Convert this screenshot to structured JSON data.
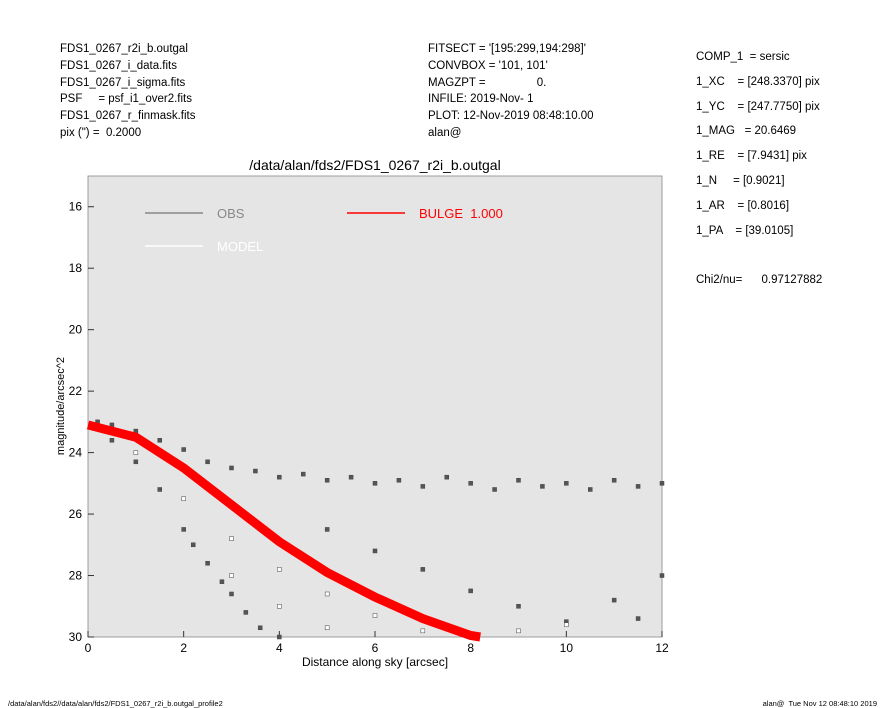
{
  "header": {
    "left": [
      "FDS1_0267_r2i_b.outgal",
      "FDS1_0267_i_data.fits",
      "FDS1_0267_i_sigma.fits",
      "PSF     = psf_i1_over2.fits",
      "FDS1_0267_r_finmask.fits",
      "pix (\") =  0.2000"
    ],
    "middle": [
      "FITSECT = '[195:299,194:298]'",
      "CONVBOX = '101, 101'",
      "MAGZPT =                0.",
      "INFILE: 2019-Nov- 1",
      "PLOT: 12-Nov-2019 08:48:10.00",
      "alan@"
    ],
    "right": [
      "COMP_1  = sersic",
      "1_XC    = [248.3370] pix",
      "1_YC    = [247.7750] pix",
      "1_MAG   = 20.6469",
      "1_RE    = [7.9431] pix",
      "1_N     = [0.9021]",
      "1_AR    = [0.8016]",
      "1_PA    = [39.0105]",
      "",
      "Chi2/nu=      0.97127882"
    ]
  },
  "footer": {
    "left": "/data/alan/fds2//data/alan/fds2/FDS1_0267_r2i_b.outgal_profile2",
    "right": "alan@  Tue Nov 12 08:48:10 2019"
  },
  "chart_data": {
    "type": "scatter",
    "title": "/data/alan/fds2/FDS1_0267_r2i_b.outgal",
    "x_label": "Distance along sky [arcsec]",
    "y_label": "magnitude/arcsec^2",
    "xlim": [
      0,
      12
    ],
    "xticks": [
      0,
      2,
      4,
      6,
      8,
      10,
      12
    ],
    "ylim": [
      30,
      15
    ],
    "yticks": [
      16,
      18,
      20,
      22,
      24,
      26,
      28,
      30
    ],
    "series": [
      {
        "name": "OBS",
        "color": "#555555",
        "legend_color": "#888888",
        "x": [
          0.2,
          0.5,
          1,
          1.5,
          2,
          2.5,
          3,
          3.5,
          4,
          4.5,
          5,
          5.5,
          6,
          6.5,
          7,
          7.5,
          8,
          8.5,
          9,
          9.5,
          10,
          10.5,
          11,
          11.5,
          12,
          0.5,
          1,
          1.5,
          2,
          2.2,
          2.5,
          2.8,
          3,
          3.3,
          3.6,
          4,
          5,
          6,
          7,
          8,
          9,
          10,
          11,
          11.5,
          12
        ],
        "y": [
          23.0,
          23.1,
          23.3,
          23.6,
          23.9,
          24.3,
          24.5,
          24.6,
          24.8,
          24.7,
          24.9,
          24.8,
          25.0,
          24.9,
          25.1,
          24.8,
          25.0,
          25.2,
          24.9,
          25.1,
          25.0,
          25.2,
          24.9,
          25.1,
          25.0,
          23.6,
          24.3,
          25.2,
          26.5,
          27.0,
          27.6,
          28.2,
          28.6,
          29.2,
          29.7,
          30,
          26.5,
          27.2,
          27.8,
          28.5,
          29.0,
          29.5,
          28.8,
          29.4,
          28.0
        ]
      },
      {
        "name": "MODEL",
        "color": "#ffffff",
        "legend_color": "#ffffff",
        "x": [
          1,
          2,
          3,
          4,
          5,
          6,
          7,
          3,
          4,
          5,
          8,
          9,
          10
        ],
        "y": [
          24.0,
          25.5,
          26.8,
          27.8,
          28.6,
          29.3,
          29.8,
          28.0,
          29.0,
          29.7,
          30,
          29.8,
          29.6
        ]
      },
      {
        "name": "BULGE  1.000",
        "color": "#ff0000",
        "legend_color": "#ff0000",
        "line": true,
        "x": [
          0,
          1,
          2,
          3,
          4,
          5,
          6,
          7,
          8,
          8.2
        ],
        "y": [
          23.1,
          23.5,
          24.5,
          25.7,
          26.9,
          27.9,
          28.7,
          29.4,
          29.95,
          30
        ]
      }
    ]
  }
}
